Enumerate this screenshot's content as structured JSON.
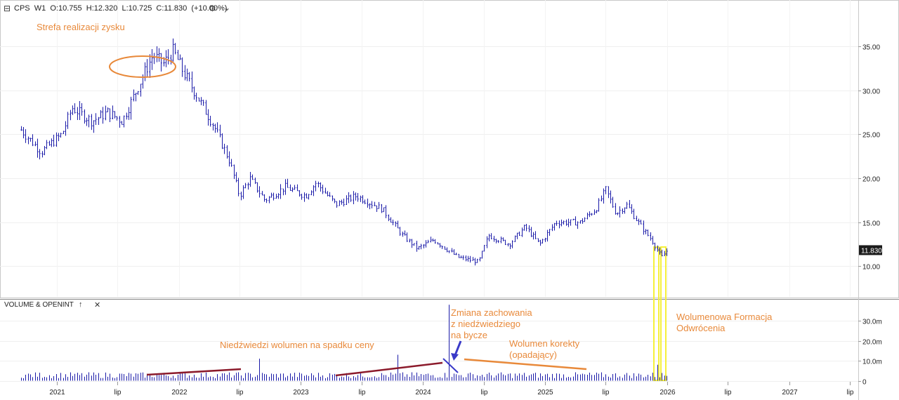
{
  "header": {
    "symbol": "CPS",
    "interval": "W1",
    "ohlc": "O:10.755  H:12.320  L:10.725  C:11.830  (+10.00%)"
  },
  "volume_panel": {
    "title": "VOLUME & OPENINT",
    "up_arrow": "↑",
    "close": "✕"
  },
  "last_price_label": "11.830",
  "annotations": {
    "profit_zone": "Strefa realizacji zysku",
    "bear_volume": "Niedźwiedzi wolumen  na spadku ceny",
    "behavior_change": "Zmiana zachowania\nz niedźwiedziego\nna bycze",
    "correction_volume": "Wolumen korekty\n(opadający)",
    "reversal": "Wolumenowa Formacja\nOdwrócenia"
  },
  "colors": {
    "candle": "#1a1aa8",
    "volume": "#1a1aa8",
    "profit_ellipse": "#e8893a",
    "bear_trendline": "#8b1a2b",
    "correction_trendline": "#e8893a",
    "arrow": "#3a3ac8",
    "highlight": "#f5f03a"
  },
  "chart_data": [
    {
      "type": "candlestick",
      "x_ticks": [
        "2021",
        "lip",
        "2022",
        "lip",
        "2023",
        "lip",
        "2024",
        "lip",
        "2025",
        "lip",
        "2026",
        "lip",
        "2027",
        "lip"
      ],
      "y_ticks": [
        "35.00",
        "30.00",
        "25.00",
        "20.00",
        "15.00",
        "10.00"
      ],
      "ylim": [
        6.5,
        39.5
      ],
      "approx_close_path": [
        [
          "2020-09-15",
          25.5
        ],
        [
          "2020-11-15",
          23.0
        ],
        [
          "2021-01-15",
          25.0
        ],
        [
          "2021-02-15",
          28.0
        ],
        [
          "2021-04-15",
          26.5
        ],
        [
          "2021-06-01",
          27.5
        ],
        [
          "2021-07-15",
          26.5
        ],
        [
          "2021-09-01",
          30.5
        ],
        [
          "2021-10-15",
          34.0
        ],
        [
          "2021-11-15",
          33.0
        ],
        [
          "2021-12-15",
          34.5
        ],
        [
          "2022-01-15",
          32.0
        ],
        [
          "2022-03-01",
          29.0
        ],
        [
          "2022-04-15",
          26.0
        ],
        [
          "2022-06-01",
          22.0
        ],
        [
          "2022-07-01",
          18.0
        ],
        [
          "2022-08-01",
          20.0
        ],
        [
          "2022-09-15",
          17.5
        ],
        [
          "2022-11-15",
          19.0
        ],
        [
          "2023-01-15",
          18.0
        ],
        [
          "2023-02-15",
          19.5
        ],
        [
          "2023-04-15",
          17.0
        ],
        [
          "2023-06-15",
          18.0
        ],
        [
          "2023-09-01",
          16.5
        ],
        [
          "2023-11-01",
          13.5
        ],
        [
          "2023-12-15",
          12.0
        ],
        [
          "2024-02-01",
          13.0
        ],
        [
          "2024-04-15",
          11.0
        ],
        [
          "2024-06-15",
          10.5
        ],
        [
          "2024-07-15",
          13.5
        ],
        [
          "2024-09-15",
          12.5
        ],
        [
          "2024-11-01",
          14.5
        ],
        [
          "2024-12-15",
          12.5
        ],
        [
          "2025-02-01",
          15.0
        ],
        [
          "2025-04-15",
          15.0
        ],
        [
          "2025-06-01",
          16.5
        ],
        [
          "2025-07-01",
          18.7
        ],
        [
          "2025-08-01",
          16.0
        ],
        [
          "2025-09-01",
          17.0
        ],
        [
          "2025-10-15",
          14.5
        ],
        [
          "2025-11-15",
          13.0
        ],
        [
          "2025-12-15",
          11.0
        ],
        [
          "2026-01-01",
          11.83
        ]
      ]
    },
    {
      "type": "bar",
      "name": "VOLUME & OPENINT",
      "y_ticks": [
        "30.0m",
        "20.0m",
        "10.0m",
        "0"
      ],
      "ylim": [
        0,
        38
      ],
      "approx_volume_m": {
        "baseline": 2.5,
        "spikes": [
          [
            "2022-09-01",
            11.0
          ],
          [
            "2023-10-15",
            13.0
          ],
          [
            "2024-03-20",
            38.0
          ],
          [
            "2025-12-01",
            8.0
          ]
        ]
      }
    }
  ]
}
